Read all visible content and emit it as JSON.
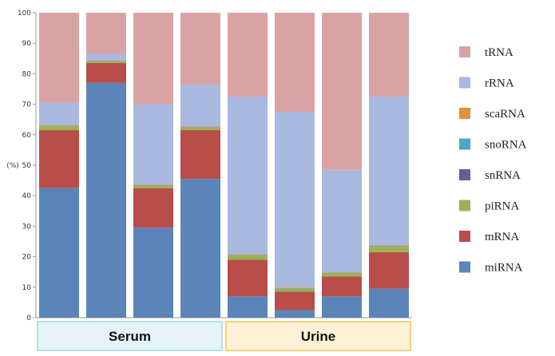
{
  "chart_data": {
    "type": "bar",
    "stacked": true,
    "ylabel": "(%)",
    "ylim": [
      0,
      100
    ],
    "yticks": [
      0,
      10,
      20,
      30,
      40,
      50,
      60,
      70,
      80,
      90,
      100
    ],
    "grid": false,
    "legend_position": "right",
    "groups": [
      {
        "label": "Serum",
        "bars": 4,
        "fill": "#e4f4f6",
        "stroke": "#b7e0e6"
      },
      {
        "label": "Urine",
        "bars": 4,
        "fill": "#fdf1d5",
        "stroke": "#f4d27a"
      }
    ],
    "series": [
      {
        "name": "miRNA",
        "color": "#5b84b8",
        "values": [
          42.5,
          77,
          29.5,
          45.5,
          7,
          2.5,
          7,
          9.5
        ]
      },
      {
        "name": "mRNA",
        "color": "#b84d4a",
        "values": [
          19,
          6.5,
          13,
          16,
          12,
          6,
          6.5,
          12
        ]
      },
      {
        "name": "piRNA",
        "color": "#98b452",
        "values": [
          1.3,
          0.5,
          0.8,
          0.8,
          1.5,
          1.0,
          1.0,
          1.8
        ]
      },
      {
        "name": "snRNA",
        "color": "#6e5a95",
        "values": [
          0.1,
          0.1,
          0.1,
          0.1,
          0.1,
          0.1,
          0.1,
          0.1
        ]
      },
      {
        "name": "snoRNA",
        "color": "#4aa9c2",
        "values": [
          0.1,
          0.1,
          0.1,
          0.1,
          0.1,
          0.1,
          0.1,
          0.1
        ]
      },
      {
        "name": "scaRNA",
        "color": "#e0913a",
        "values": [
          0.2,
          0.2,
          0.2,
          0.2,
          0.2,
          0.2,
          0.2,
          0.2
        ]
      },
      {
        "name": "rRNA",
        "color": "#a8b8de",
        "values": [
          7.3,
          2.1,
          26.3,
          13.8,
          51.6,
          57.6,
          33.6,
          48.8
        ]
      },
      {
        "name": "tRNA",
        "color": "#d9a3a4",
        "values": [
          29.5,
          13.5,
          30,
          23.5,
          27.5,
          32.5,
          51.5,
          27.5
        ]
      }
    ],
    "legend_order": [
      "tRNA",
      "rRNA",
      "scaRNA",
      "snoRNA",
      "snRNA",
      "piRNA",
      "mRNA",
      "miRNA"
    ]
  }
}
